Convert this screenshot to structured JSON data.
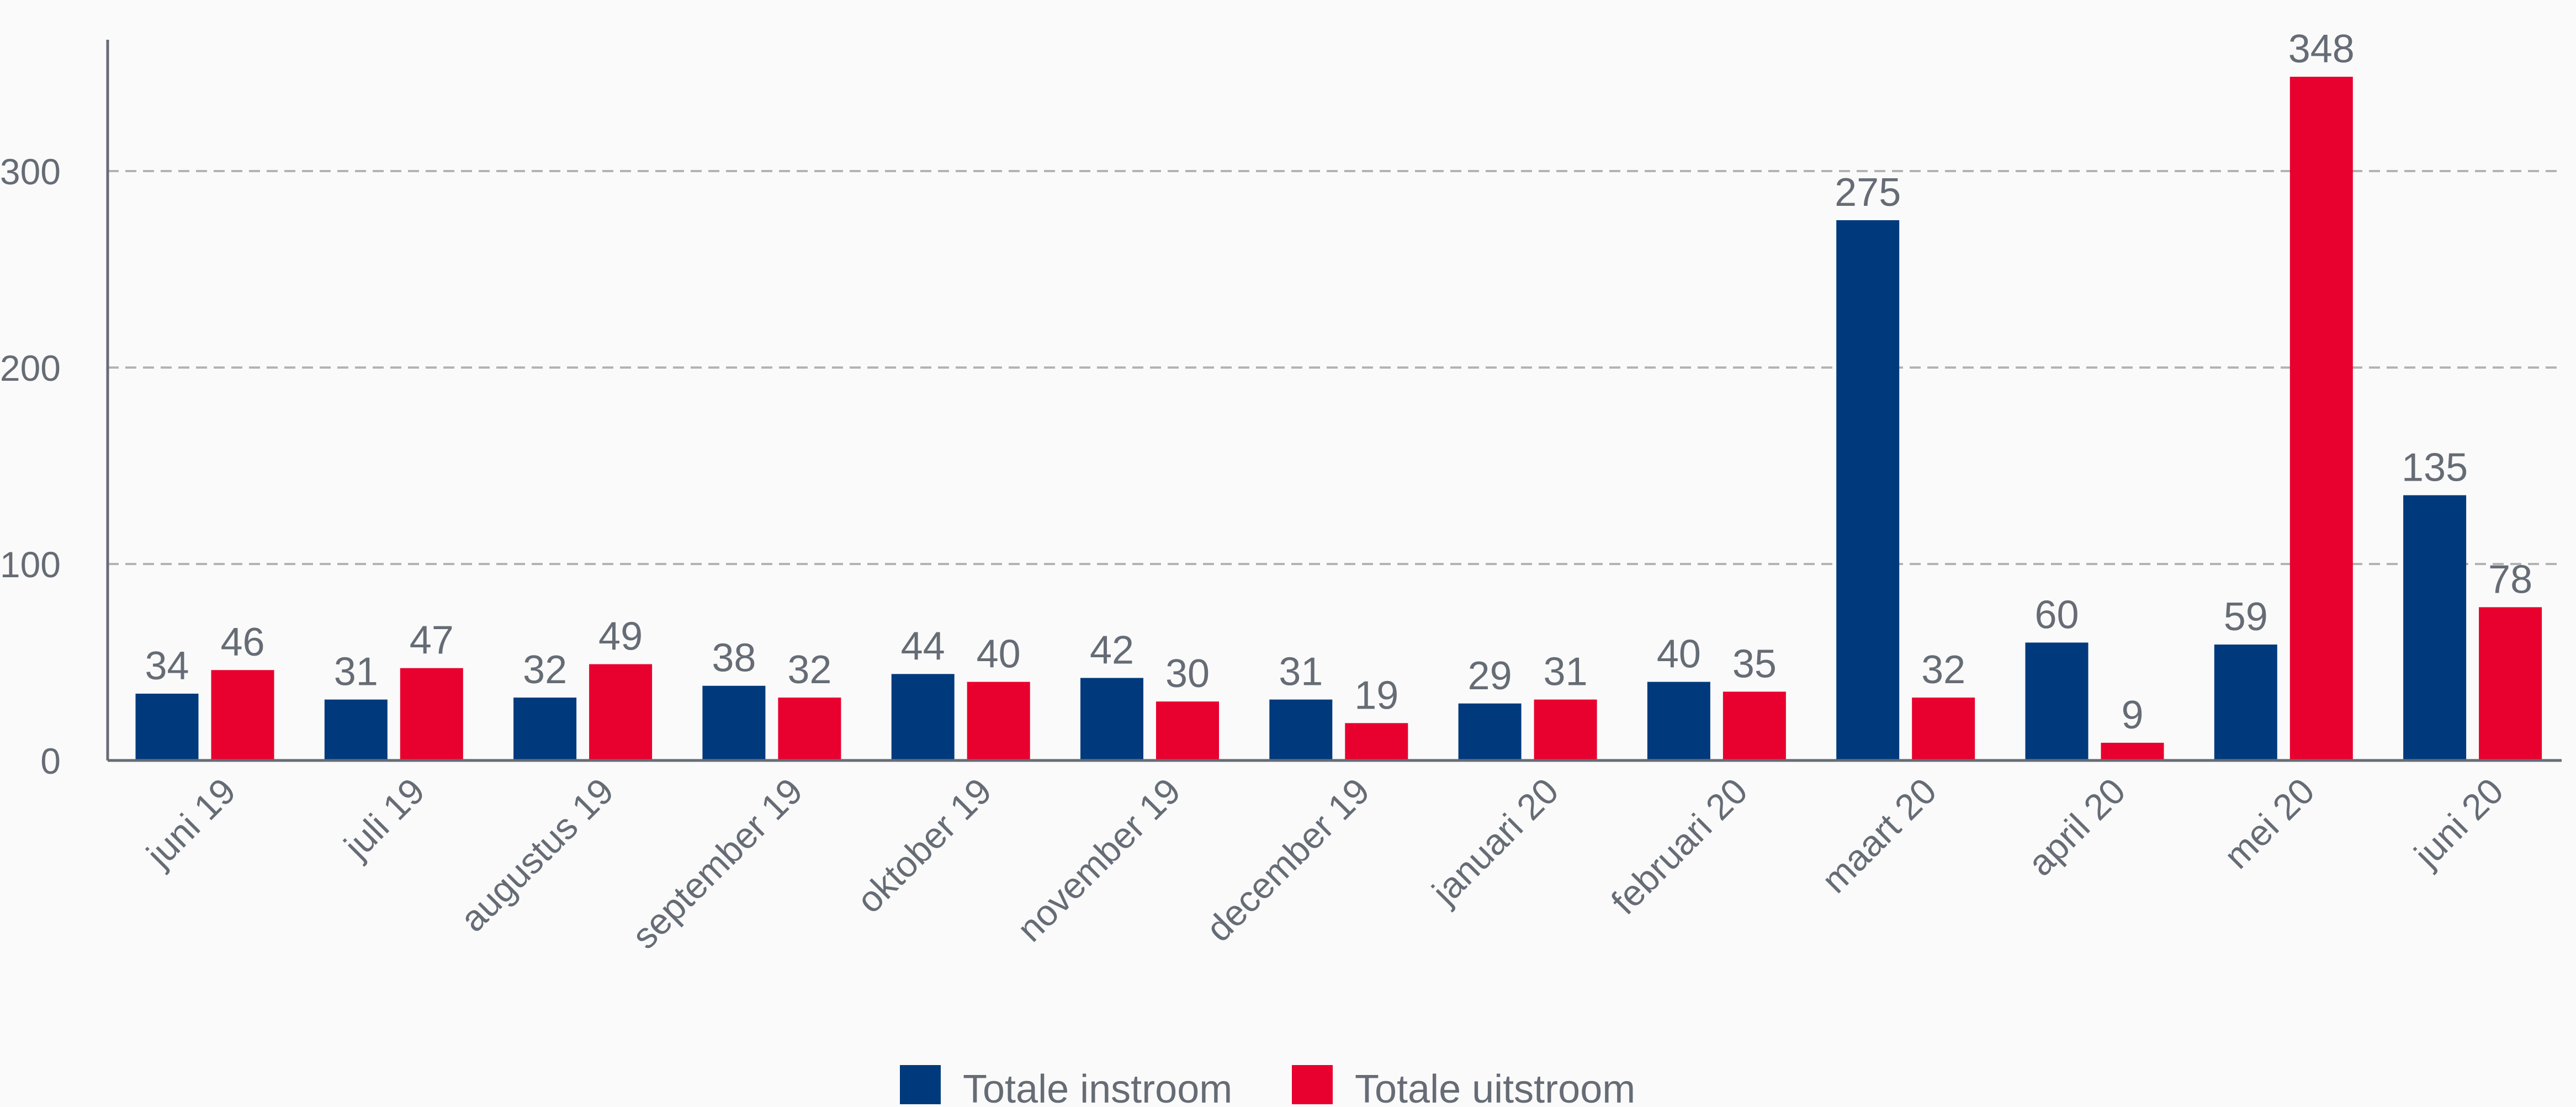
{
  "chart_data": {
    "type": "bar",
    "title": "",
    "xlabel": "",
    "ylabel": "",
    "categories": [
      "juni 19",
      "juli 19",
      "augustus 19",
      "september 19",
      "oktober 19",
      "november 19",
      "december 19",
      "januari 20",
      "februari 20",
      "maart 20",
      "april 20",
      "mei 20",
      "juni 20"
    ],
    "series": [
      {
        "name": "Totale instroom",
        "color": "#003a7d",
        "values": [
          34,
          31,
          32,
          38,
          44,
          42,
          31,
          29,
          40,
          275,
          60,
          59,
          135
        ]
      },
      {
        "name": "Totale uitstroom",
        "color": "#e8002e",
        "values": [
          46,
          47,
          49,
          32,
          40,
          30,
          19,
          31,
          35,
          32,
          9,
          348,
          78
        ]
      }
    ],
    "yticks": [
      "0",
      "100",
      "200",
      "300"
    ],
    "ylim": [
      0,
      370
    ],
    "grid": true,
    "legend_position": "bottom-center",
    "data_labels": true
  }
}
